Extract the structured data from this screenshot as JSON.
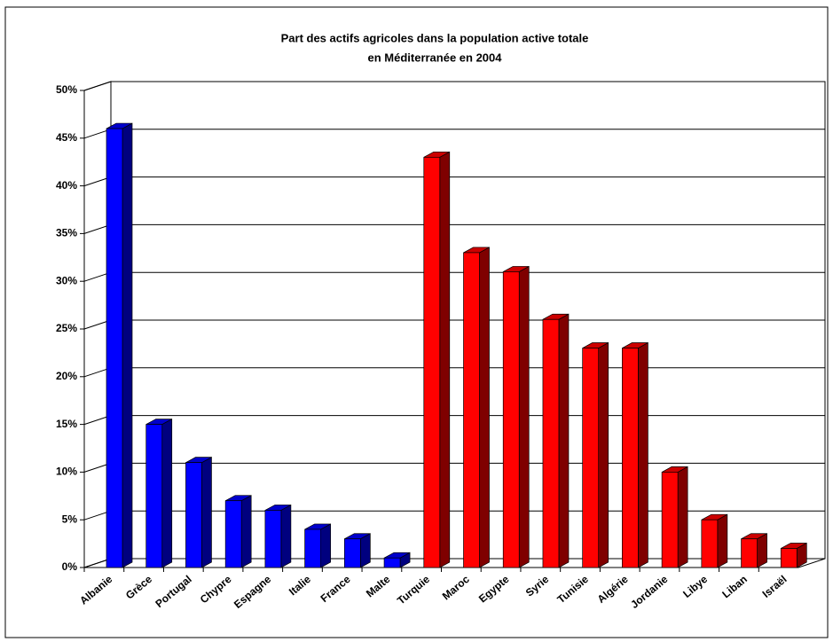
{
  "chart_data": {
    "type": "bar3d",
    "title": [
      "Part des actifs agricoles dans la population active totale",
      "en Méditerranée en 2004"
    ],
    "categories": [
      "Albanie",
      "Grèce",
      "Portugal",
      "Chypre",
      "Espagne",
      "Italie",
      "France",
      "Malte",
      "Turquie",
      "Maroc",
      "Egypte",
      "Syrie",
      "Tunisie",
      "Algérie",
      "Jordanie",
      "Libye",
      "Liban",
      "Israël"
    ],
    "values": [
      46,
      15,
      11,
      7,
      6,
      4,
      3,
      1,
      43,
      33,
      31,
      26,
      23,
      23,
      10,
      5,
      3,
      2
    ],
    "colors": [
      "#0000ff",
      "#0000ff",
      "#0000ff",
      "#0000ff",
      "#0000ff",
      "#0000ff",
      "#0000ff",
      "#0000ff",
      "#ff0000",
      "#ff0000",
      "#ff0000",
      "#ff0000",
      "#ff0000",
      "#ff0000",
      "#ff0000",
      "#ff0000",
      "#ff0000",
      "#ff0000"
    ],
    "ylim": [
      0,
      50
    ],
    "yticks": [
      {
        "value": 0,
        "label": "0%"
      },
      {
        "value": 5,
        "label": "5%"
      },
      {
        "value": 10,
        "label": "10%"
      },
      {
        "value": 15,
        "label": "15%"
      },
      {
        "value": 20,
        "label": "20%"
      },
      {
        "value": 25,
        "label": "25%"
      },
      {
        "value": 30,
        "label": "30%"
      },
      {
        "value": 35,
        "label": "35%"
      },
      {
        "value": 40,
        "label": "40%"
      },
      {
        "value": 45,
        "label": "45%"
      },
      {
        "value": 50,
        "label": "50%"
      }
    ],
    "grid": true
  }
}
